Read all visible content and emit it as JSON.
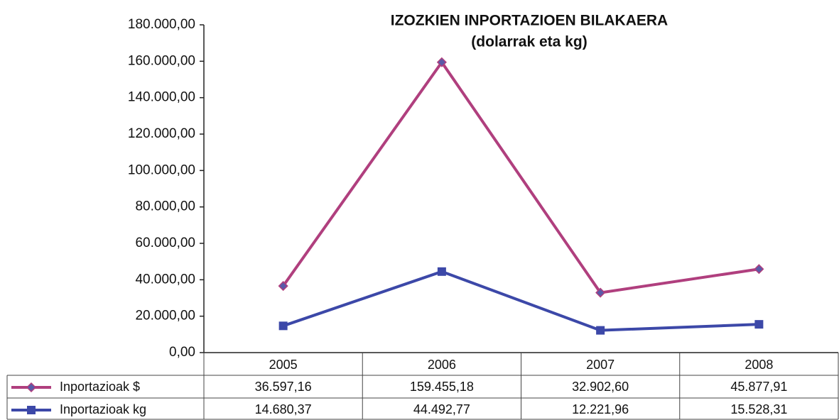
{
  "chart_data": {
    "type": "line",
    "title": "IZOZKIEN INPORTAZIOEN BILAKAERA",
    "subtitle": "(dolarrak eta kg)",
    "categories": [
      "2005",
      "2006",
      "2007",
      "2008"
    ],
    "series": [
      {
        "name": "Inportazioak $",
        "color": "#b03f7e",
        "marker": "diamond",
        "values": [
          36597.16,
          159455.18,
          32902.6,
          45877.91
        ],
        "value_labels": [
          "36.597,16",
          "159.455,18",
          "32.902,60",
          "45.877,91"
        ]
      },
      {
        "name": "Inportazioak kg",
        "color": "#3c48a8",
        "marker": "square",
        "values": [
          14680.37,
          44492.77,
          12221.96,
          15528.31
        ],
        "value_labels": [
          "14.680,37",
          "44.492,77",
          "12.221,96",
          "15.528,31"
        ]
      }
    ],
    "ylim": [
      0,
      180000
    ],
    "yticks": [
      {
        "value": 0,
        "label": "0,00"
      },
      {
        "value": 20000,
        "label": "20.000,00"
      },
      {
        "value": 40000,
        "label": "40.000,00"
      },
      {
        "value": 60000,
        "label": "60.000,00"
      },
      {
        "value": 80000,
        "label": "80.000,00"
      },
      {
        "value": 100000,
        "label": "100.000,00"
      },
      {
        "value": 120000,
        "label": "120.000,00"
      },
      {
        "value": 140000,
        "label": "140.000,00"
      },
      {
        "value": 160000,
        "label": "160.000,00"
      },
      {
        "value": 180000,
        "label": "180.000,00"
      }
    ],
    "grid": false,
    "data_table": true
  }
}
